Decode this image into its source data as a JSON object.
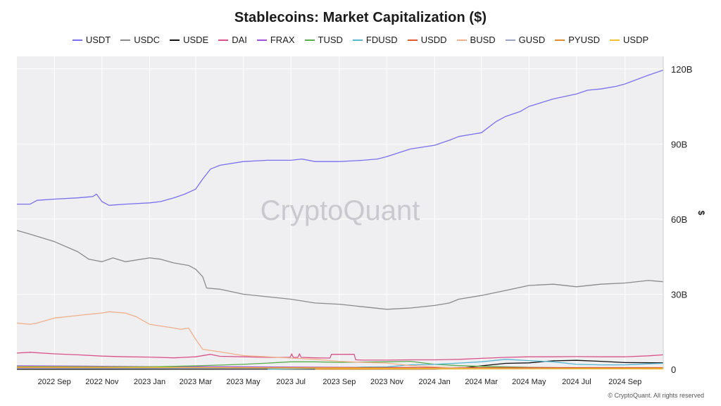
{
  "footer": {
    "copyright": "© CryptoQuant. All rights reserved"
  },
  "watermark": "CryptoQuant",
  "chart_data": {
    "type": "line",
    "title": "Stablecoins: Market Capitalization ($)",
    "xlabel": "",
    "ylabel": "$",
    "y_axis_side": "right",
    "ylim": [
      0,
      125
    ],
    "y_unit": "B",
    "yticks": [
      0,
      30,
      60,
      90,
      120
    ],
    "ytick_labels": [
      "0",
      "30B",
      "60B",
      "90B",
      "120B"
    ],
    "xlim": [
      "2022-07-15",
      "2024-10-20"
    ],
    "xticks": [
      "2022-09-01",
      "2022-11-01",
      "2023-01-01",
      "2023-03-01",
      "2023-05-01",
      "2023-07-01",
      "2023-09-01",
      "2023-11-01",
      "2024-01-01",
      "2024-03-01",
      "2024-05-01",
      "2024-07-01",
      "2024-09-01"
    ],
    "xtick_labels": [
      "2022 Sep",
      "2022 Nov",
      "2023 Jan",
      "2023 Mar",
      "2023 May",
      "2023 Jul",
      "2023 Sep",
      "2023 Nov",
      "2024 Jan",
      "2024 Mar",
      "2024 May",
      "2024 Jul",
      "2024 Sep"
    ],
    "grid": true,
    "legend_position": "top",
    "series": [
      {
        "name": "USDT",
        "color": "#7b6ff0",
        "x": [
          "2022-07-15",
          "2022-08-01",
          "2022-08-10",
          "2022-09-01",
          "2022-10-01",
          "2022-10-20",
          "2022-10-25",
          "2022-11-01",
          "2022-11-10",
          "2022-12-01",
          "2023-01-01",
          "2023-01-15",
          "2023-02-01",
          "2023-02-15",
          "2023-03-01",
          "2023-03-10",
          "2023-03-20",
          "2023-04-01",
          "2023-05-01",
          "2023-06-01",
          "2023-07-01",
          "2023-07-15",
          "2023-08-01",
          "2023-09-01",
          "2023-10-01",
          "2023-10-20",
          "2023-11-01",
          "2023-12-01",
          "2024-01-01",
          "2024-01-20",
          "2024-02-01",
          "2024-02-20",
          "2024-03-01",
          "2024-03-20",
          "2024-04-01",
          "2024-04-20",
          "2024-05-01",
          "2024-06-01",
          "2024-07-01",
          "2024-07-15",
          "2024-08-01",
          "2024-08-20",
          "2024-09-01",
          "2024-10-01",
          "2024-10-20"
        ],
        "y": [
          66,
          66,
          67.5,
          68,
          68.5,
          69,
          70,
          67,
          65.5,
          66,
          66.5,
          67,
          68.5,
          70,
          72,
          76,
          80,
          81.5,
          83,
          83.5,
          83.5,
          84,
          83,
          83,
          83.5,
          84,
          85,
          88,
          89.5,
          91.5,
          93,
          94,
          94.5,
          99,
          101,
          103,
          105,
          108,
          110,
          111.5,
          112,
          113,
          114,
          117.5,
          119.5
        ]
      },
      {
        "name": "USDC",
        "color": "#8a8a8a",
        "x": [
          "2022-07-15",
          "2022-08-01",
          "2022-09-01",
          "2022-10-01",
          "2022-10-15",
          "2022-11-01",
          "2022-11-15",
          "2022-12-01",
          "2023-01-01",
          "2023-01-15",
          "2023-02-01",
          "2023-02-20",
          "2023-03-01",
          "2023-03-10",
          "2023-03-15",
          "2023-04-01",
          "2023-05-01",
          "2023-06-01",
          "2023-07-01",
          "2023-08-01",
          "2023-09-01",
          "2023-10-01",
          "2023-11-01",
          "2023-12-01",
          "2024-01-01",
          "2024-01-20",
          "2024-02-01",
          "2024-03-01",
          "2024-04-01",
          "2024-05-01",
          "2024-06-01",
          "2024-07-01",
          "2024-08-01",
          "2024-09-01",
          "2024-10-01",
          "2024-10-20"
        ],
        "y": [
          55.5,
          54,
          51,
          47,
          44,
          43,
          44.5,
          43,
          44.5,
          44,
          42.5,
          41.5,
          40,
          37,
          32.5,
          32,
          30,
          29,
          28,
          26.5,
          26,
          25,
          24,
          24.5,
          25.5,
          26.5,
          28,
          29.5,
          31.5,
          33.5,
          34,
          33,
          34,
          34.5,
          35.5,
          35
        ]
      },
      {
        "name": "USDE",
        "color": "#111111",
        "x": [
          "2022-07-15",
          "2024-01-01",
          "2024-02-01",
          "2024-03-01",
          "2024-04-01",
          "2024-05-01",
          "2024-06-01",
          "2024-07-01",
          "2024-08-01",
          "2024-09-01",
          "2024-10-20"
        ],
        "y": [
          0,
          0.1,
          0.4,
          1.4,
          2.4,
          2.6,
          3.4,
          3.6,
          3.2,
          2.7,
          2.6
        ]
      },
      {
        "name": "DAI",
        "color": "#d9538a",
        "x": [
          "2022-07-15",
          "2022-08-01",
          "2022-09-01",
          "2022-10-01",
          "2022-11-01",
          "2022-12-01",
          "2023-01-01",
          "2023-02-01",
          "2023-03-01",
          "2023-03-20",
          "2023-04-01",
          "2023-05-01",
          "2023-06-01",
          "2023-06-30",
          "2023-07-02",
          "2023-07-04",
          "2023-07-10",
          "2023-07-12",
          "2023-07-14",
          "2023-08-01",
          "2023-08-20",
          "2023-08-22",
          "2023-09-20",
          "2023-09-22",
          "2023-10-01",
          "2023-11-01",
          "2023-12-01",
          "2024-01-01",
          "2024-02-01",
          "2024-03-01",
          "2024-04-01",
          "2024-05-01",
          "2024-06-01",
          "2024-07-01",
          "2024-08-01",
          "2024-09-01",
          "2024-10-01",
          "2024-10-20"
        ],
        "y": [
          6.5,
          6.8,
          6.2,
          5.8,
          5.3,
          5.0,
          4.9,
          4.6,
          5.0,
          6.0,
          5.2,
          5.0,
          4.8,
          4.8,
          6.2,
          4.8,
          4.8,
          6.2,
          4.8,
          4.6,
          4.5,
          6.0,
          6.0,
          3.8,
          3.7,
          3.7,
          3.8,
          3.8,
          4.0,
          4.4,
          4.8,
          5.0,
          5.0,
          5.1,
          5.0,
          5.0,
          5.4,
          5.8
        ]
      },
      {
        "name": "FRAX",
        "color": "#a050d8",
        "x": [
          "2022-07-15",
          "2022-10-01",
          "2023-01-01",
          "2023-05-01",
          "2023-09-01",
          "2024-01-01",
          "2024-05-01",
          "2024-10-20"
        ],
        "y": [
          1.4,
          1.3,
          1.1,
          1.0,
          0.8,
          0.7,
          0.6,
          0.5
        ]
      },
      {
        "name": "TUSD",
        "color": "#5aad4d",
        "x": [
          "2022-07-15",
          "2022-09-01",
          "2022-11-01",
          "2023-01-01",
          "2023-03-01",
          "2023-05-01",
          "2023-06-01",
          "2023-07-01",
          "2023-08-01",
          "2023-09-01",
          "2023-10-01",
          "2023-11-01",
          "2023-12-01",
          "2024-01-01",
          "2024-02-01",
          "2024-03-01",
          "2024-05-01",
          "2024-07-01",
          "2024-10-20"
        ],
        "y": [
          1.1,
          1.1,
          1.0,
          1.0,
          1.4,
          2.0,
          2.5,
          3.0,
          3.0,
          2.8,
          2.9,
          3.0,
          3.2,
          2.0,
          1.5,
          1.2,
          0.8,
          0.6,
          0.5
        ]
      },
      {
        "name": "FDUSD",
        "color": "#56b7d2",
        "x": [
          "2023-06-01",
          "2023-07-01",
          "2023-08-01",
          "2023-09-01",
          "2023-10-01",
          "2023-11-01",
          "2023-12-01",
          "2024-01-01",
          "2024-02-01",
          "2024-03-01",
          "2024-04-01",
          "2024-05-01",
          "2024-06-01",
          "2024-07-01",
          "2024-08-01",
          "2024-09-01",
          "2024-10-01",
          "2024-10-20"
        ],
        "y": [
          0,
          0.2,
          0.3,
          0.5,
          0.9,
          1.0,
          1.8,
          2.0,
          2.5,
          3.0,
          4.0,
          3.5,
          3.0,
          2.0,
          1.8,
          1.8,
          2.2,
          2.4
        ]
      },
      {
        "name": "USDD",
        "color": "#e4582e",
        "x": [
          "2022-07-15",
          "2022-12-01",
          "2023-06-01",
          "2024-01-01",
          "2024-10-20"
        ],
        "y": [
          0.7,
          0.7,
          0.7,
          0.7,
          0.7
        ]
      },
      {
        "name": "BUSD",
        "color": "#f0b08a",
        "x": [
          "2022-07-15",
          "2022-08-01",
          "2022-08-10",
          "2022-09-01",
          "2022-10-01",
          "2022-10-15",
          "2022-11-01",
          "2022-11-10",
          "2022-12-01",
          "2022-12-15",
          "2023-01-01",
          "2023-02-01",
          "2023-02-10",
          "2023-02-20",
          "2023-03-01",
          "2023-03-10",
          "2023-04-01",
          "2023-05-01",
          "2023-06-01",
          "2023-07-01",
          "2023-08-01",
          "2023-09-01",
          "2023-10-01",
          "2023-11-01",
          "2023-12-01",
          "2024-01-01",
          "2024-02-01",
          "2024-04-01",
          "2024-10-20"
        ],
        "y": [
          18.5,
          18,
          18.5,
          20.5,
          21.5,
          22,
          22.5,
          23,
          22.5,
          21,
          18,
          16.5,
          16,
          16.5,
          12,
          8,
          7,
          5.5,
          5,
          4.5,
          4,
          3.2,
          2.8,
          2.5,
          1.5,
          1.0,
          0.5,
          0.2,
          0.1
        ]
      },
      {
        "name": "GUSD",
        "color": "#9aa3c7",
        "x": [
          "2022-07-15",
          "2023-01-01",
          "2023-06-01",
          "2024-01-01",
          "2024-10-20"
        ],
        "y": [
          0.4,
          0.4,
          0.4,
          0.3,
          0.2
        ]
      },
      {
        "name": "PYUSD",
        "color": "#e08a2e",
        "x": [
          "2023-08-01",
          "2023-12-01",
          "2024-04-01",
          "2024-07-01",
          "2024-10-20"
        ],
        "y": [
          0.05,
          0.1,
          0.2,
          0.4,
          0.5
        ]
      },
      {
        "name": "USDP",
        "color": "#f0c030",
        "x": [
          "2022-07-15",
          "2023-01-01",
          "2023-06-01",
          "2024-01-01",
          "2024-10-20"
        ],
        "y": [
          0.9,
          0.8,
          0.6,
          0.3,
          0.2
        ]
      }
    ]
  }
}
